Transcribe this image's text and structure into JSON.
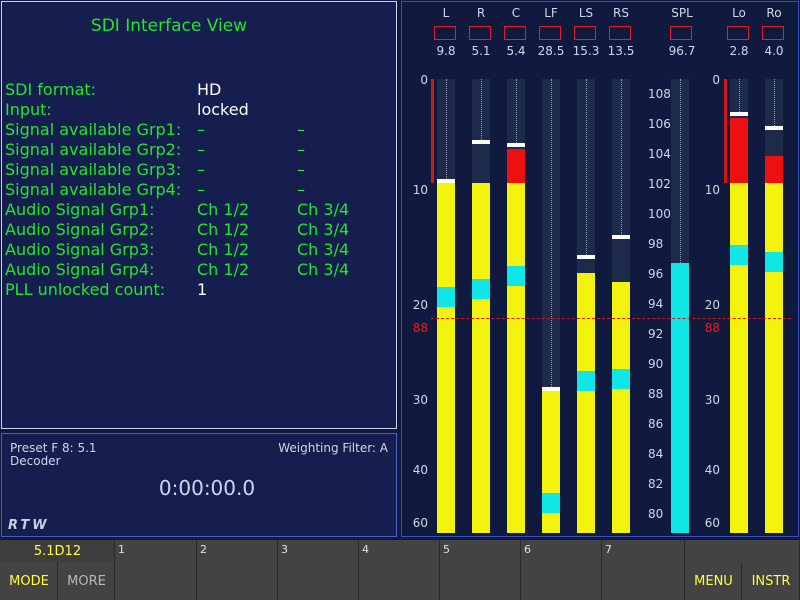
{
  "sdi": {
    "title": "SDI Interface View",
    "rows": [
      {
        "label": "SDI format:",
        "v1": "HD",
        "v2": ""
      },
      {
        "label": "Input:",
        "v1": "locked",
        "v2": ""
      },
      {
        "label": "Signal available Grp1:",
        "v1": "–",
        "v2": "–"
      },
      {
        "label": "Signal available Grp2:",
        "v1": "–",
        "v2": "–"
      },
      {
        "label": "Signal available Grp3:",
        "v1": "–",
        "v2": "–"
      },
      {
        "label": "Signal available Grp4:",
        "v1": "–",
        "v2": "–"
      },
      {
        "label": "Audio Signal Grp1:",
        "v1": "Ch 1/2",
        "v2": "Ch 3/4"
      },
      {
        "label": "Audio Signal Grp2:",
        "v1": "Ch 1/2",
        "v2": "Ch 3/4"
      },
      {
        "label": "Audio Signal Grp3:",
        "v1": "Ch 1/2",
        "v2": "Ch 3/4"
      },
      {
        "label": "Audio Signal Grp4:",
        "v1": "Ch 1/2",
        "v2": "Ch 3/4"
      },
      {
        "label": "PLL unlocked count:",
        "v1": "1",
        "v2": ""
      }
    ]
  },
  "preset": {
    "name": "Preset F 8: 5.1",
    "mode": "Decoder",
    "weighting": "Weighting Filter: A",
    "timer": "0:00:00.0",
    "logo": "RTW"
  },
  "meters": {
    "channels": [
      {
        "name": "L",
        "peak": "9.8"
      },
      {
        "name": "R",
        "peak": "5.1"
      },
      {
        "name": "C",
        "peak": "5.4"
      },
      {
        "name": "LF",
        "peak": "28.5"
      },
      {
        "name": "LS",
        "peak": "15.3"
      },
      {
        "name": "RS",
        "peak": "13.5"
      }
    ],
    "spl": {
      "name": "SPL",
      "peak": "96.7"
    },
    "downmix": [
      {
        "name": "Lo",
        "peak": "2.8"
      },
      {
        "name": "Ro",
        "peak": "4.0"
      }
    ],
    "scale": [
      "0",
      "10",
      "20",
      "30",
      "40",
      "60"
    ],
    "scale_red": "88",
    "spl_scale": [
      "108",
      "106",
      "104",
      "102",
      "100",
      "98",
      "96",
      "94",
      "92",
      "90",
      "88",
      "86",
      "84",
      "82",
      "80"
    ],
    "colors": {
      "yellow": "#f3f30e",
      "red": "#ee1010",
      "cyan": "#10e6e6"
    }
  },
  "softkeys": {
    "top": [
      "5.1D12",
      "1",
      "2",
      "3",
      "4",
      "5",
      "6",
      "7",
      ""
    ],
    "mode": "MODE",
    "more": "MORE",
    "menu": "MENU",
    "instr": "INSTR"
  }
}
